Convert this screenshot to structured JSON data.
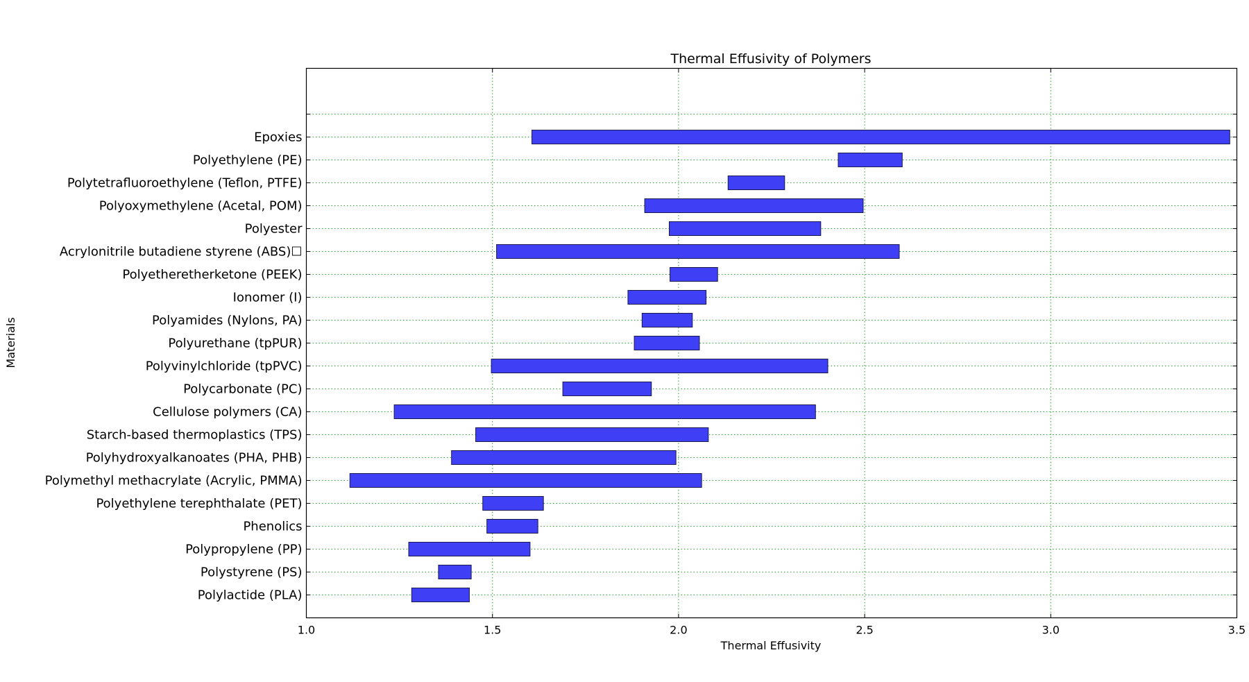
{
  "chart_data": {
    "type": "bar",
    "orientation": "horizontal",
    "title": "Thermal Effusivity of Polymers",
    "xlabel": "Thermal Effusivity",
    "ylabel": "Materials",
    "xlim": [
      1.0,
      3.5
    ],
    "xticks": [
      "1.0",
      "1.5",
      "2.0",
      "2.5",
      "3.0",
      "3.5"
    ],
    "grid": true,
    "bar_color": "#3f3ff5",
    "bar_edge_color": "#1a1a4d",
    "grid_color": "#2ca02c",
    "categories": [
      "Polylactide (PLA)",
      "Polystyrene (PS)",
      "Polypropylene (PP)",
      "Phenolics",
      "Polyethylene terephthalate (PET)",
      "Polymethyl methacrylate (Acrylic, PMMA)",
      "Polyhydroxyalkanoates (PHA, PHB)",
      "Starch-based thermoplastics (TPS)",
      "Cellulose polymers (CA)",
      "Polycarbonate (PC)",
      "Polyvinylchloride (tpPVC)",
      "Polyurethane (tpPUR)",
      "Polyamides (Nylons, PA)",
      "Ionomer (I)",
      "Polyetheretherketone (PEEK)",
      "Acrylonitrile butadiene styrene (ABS)☐",
      "Polyester",
      "Polyoxymethylene (Acetal, POM)",
      "Polytetrafluoroethylene (Teflon, PTFE)",
      "Polyethylene (PE)",
      "Epoxies"
    ],
    "ranges": [
      [
        1.283,
        1.438
      ],
      [
        1.355,
        1.443
      ],
      [
        1.275,
        1.601
      ],
      [
        1.485,
        1.622
      ],
      [
        1.474,
        1.637
      ],
      [
        1.117,
        2.062
      ],
      [
        1.39,
        1.993
      ],
      [
        1.455,
        2.08
      ],
      [
        1.236,
        2.368
      ],
      [
        1.689,
        1.927
      ],
      [
        1.497,
        2.401
      ],
      [
        1.881,
        2.056
      ],
      [
        1.902,
        2.037
      ],
      [
        1.864,
        2.074
      ],
      [
        1.977,
        2.105
      ],
      [
        1.511,
        2.593
      ],
      [
        1.975,
        2.382
      ],
      [
        1.909,
        2.496
      ],
      [
        2.133,
        2.285
      ],
      [
        2.429,
        2.601
      ],
      [
        1.606,
        3.481
      ]
    ]
  }
}
